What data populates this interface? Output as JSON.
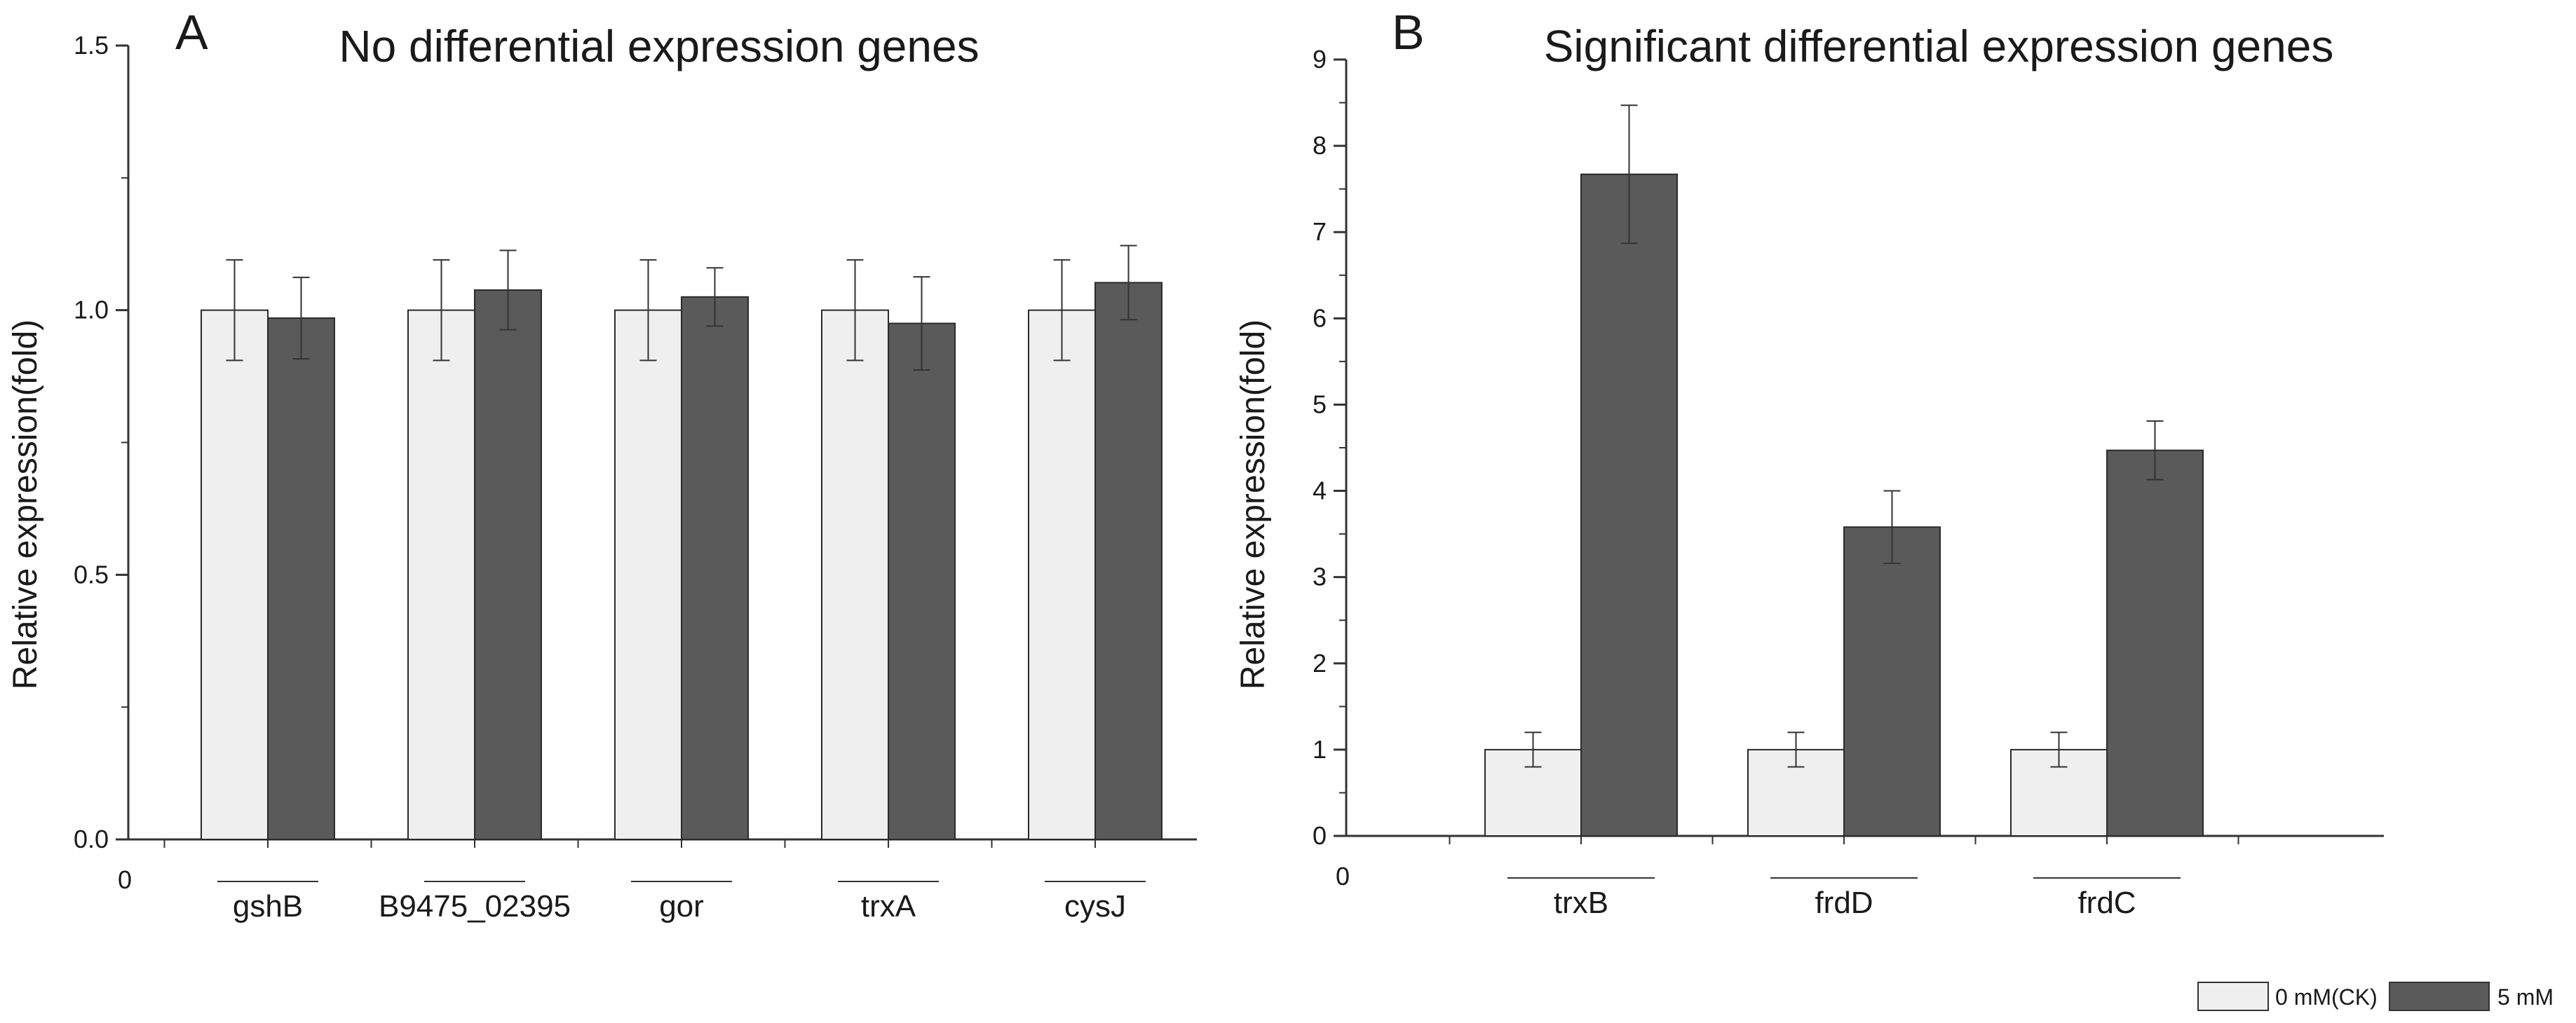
{
  "legend": {
    "items": [
      {
        "label": "0 mM(CK)",
        "color": "#efefef"
      },
      {
        "label": "5 mM",
        "color": "#5a5a5a"
      }
    ]
  },
  "chart_data": [
    {
      "type": "bar",
      "panel_letter": "A",
      "title": "No differential expression genes",
      "xlabel": "",
      "ylabel": "Relative expression(fold)",
      "origin_label": "0",
      "categories": [
        "gshB",
        "B9475_02395",
        "gor",
        "trxA",
        "cysJ"
      ],
      "series": [
        {
          "name": "0 mM(CK)",
          "values": [
            1.0,
            1.0,
            1.0,
            1.0,
            1.0
          ],
          "errors": [
            0.095,
            0.095,
            0.095,
            0.095,
            0.095
          ]
        },
        {
          "name": "5 mM",
          "values": [
            0.985,
            1.038,
            1.025,
            0.975,
            1.052
          ],
          "errors": [
            0.077,
            0.075,
            0.055,
            0.088,
            0.07
          ]
        }
      ],
      "ylim": [
        0,
        1.5
      ],
      "yticks": [
        0.0,
        0.5,
        1.0,
        1.5
      ],
      "ytick_labels": [
        "0.0",
        "0.5",
        "1.0",
        "1.5"
      ],
      "grid": false
    },
    {
      "type": "bar",
      "panel_letter": "B",
      "title": "Significant differential expression genes",
      "xlabel": "",
      "ylabel": "Relative expression(fold)",
      "origin_label": "0",
      "categories": [
        "trxB",
        "frdD",
        "frdC"
      ],
      "series": [
        {
          "name": "0 mM(CK)",
          "values": [
            1.0,
            1.0,
            1.0
          ],
          "errors": [
            0.2,
            0.2,
            0.2
          ]
        },
        {
          "name": "5 mM",
          "values": [
            7.67,
            3.58,
            4.47
          ],
          "errors": [
            0.8,
            0.42,
            0.34
          ]
        }
      ],
      "ylim": [
        0,
        9
      ],
      "yticks": [
        0,
        1,
        2,
        3,
        4,
        5,
        6,
        7,
        8,
        9
      ],
      "ytick_labels": [
        "0",
        "1",
        "2",
        "3",
        "4",
        "5",
        "6",
        "7",
        "8",
        "9"
      ],
      "grid": false
    }
  ]
}
